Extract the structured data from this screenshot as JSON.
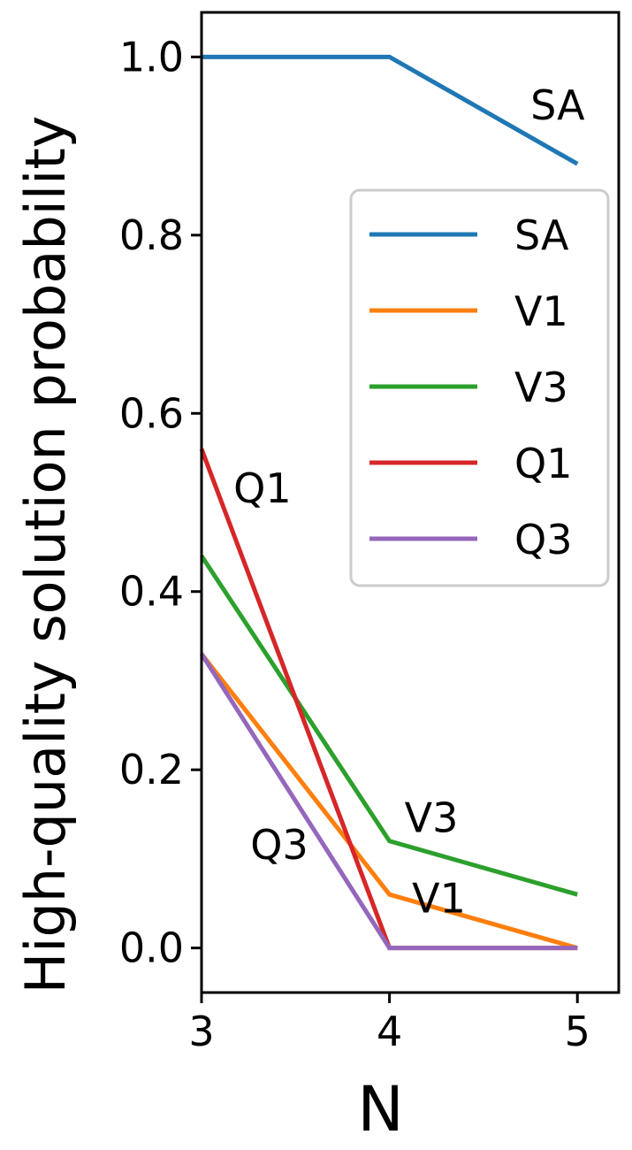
{
  "chart_data": {
    "type": "line",
    "title": "",
    "xlabel": "N",
    "ylabel": "High-quality solution probability",
    "x": [
      3,
      4,
      5
    ],
    "xlim": [
      3,
      5.22
    ],
    "ylim": [
      -0.05,
      1.05
    ],
    "xticks": [
      3,
      4,
      5
    ],
    "xtick_labels": [
      "3",
      "4",
      "5"
    ],
    "yticks": [
      0.0,
      0.2,
      0.4,
      0.6,
      0.8,
      1.0
    ],
    "ytick_labels": [
      "0.0",
      "0.2",
      "0.4",
      "0.6",
      "0.8",
      "1.0"
    ],
    "grid": false,
    "legend_position": "center-right",
    "series": [
      {
        "name": "SA",
        "color": "#1f77b4",
        "values": [
          1.0,
          1.0,
          0.88
        ]
      },
      {
        "name": "V1",
        "color": "#ff7f0e",
        "values": [
          0.33,
          0.06,
          0.0
        ]
      },
      {
        "name": "V3",
        "color": "#2ca02c",
        "values": [
          0.44,
          0.12,
          0.06
        ]
      },
      {
        "name": "Q1",
        "color": "#d62728",
        "values": [
          0.56,
          0.0,
          0.0
        ]
      },
      {
        "name": "Q3",
        "color": "#9467bd",
        "values": [
          0.33,
          0.0,
          0.0
        ]
      }
    ],
    "annotations": [
      {
        "text": "SA",
        "x": 4.75,
        "y": 0.93
      },
      {
        "text": "Q1",
        "x": 3.17,
        "y": 0.5
      },
      {
        "text": "V3",
        "x": 4.08,
        "y": 0.13
      },
      {
        "text": "Q3",
        "x": 3.26,
        "y": 0.1
      },
      {
        "text": "V1",
        "x": 4.12,
        "y": 0.04
      }
    ]
  }
}
